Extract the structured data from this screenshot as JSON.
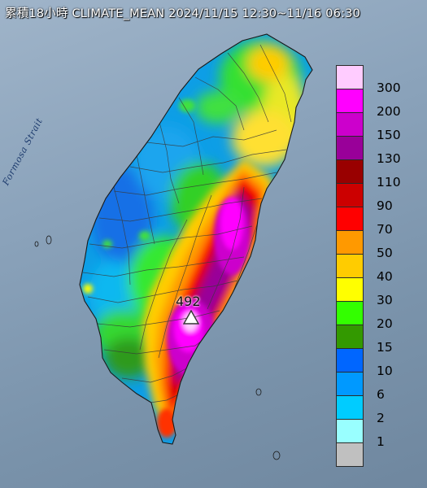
{
  "map": {
    "title": "累積18小時 CLIMATE_MEAN 2024/11/15 12:30~11/16 06:30",
    "sea_label": "Formosa Strait",
    "max_value": "492",
    "land_color": "#0d9ee6"
  },
  "legend": {
    "items": [
      {
        "label": "300",
        "color": "#ffccff"
      },
      {
        "label": "200",
        "color": "#ff00ff"
      },
      {
        "label": "150",
        "color": "#cc00cc"
      },
      {
        "label": "130",
        "color": "#990099"
      },
      {
        "label": "110",
        "color": "#990000"
      },
      {
        "label": "90",
        "color": "#cc0000"
      },
      {
        "label": "70",
        "color": "#ff0000"
      },
      {
        "label": "50",
        "color": "#ff9900"
      },
      {
        "label": "40",
        "color": "#ffcc00"
      },
      {
        "label": "30",
        "color": "#ffff00"
      },
      {
        "label": "20",
        "color": "#33ff00"
      },
      {
        "label": "15",
        "color": "#339900"
      },
      {
        "label": "10",
        "color": "#0066ff"
      },
      {
        "label": "6",
        "color": "#0099ff"
      },
      {
        "label": "2",
        "color": "#00ccff"
      },
      {
        "label": "1",
        "color": "#99ffff"
      },
      {
        "label": "",
        "color": "#c0c0c0"
      }
    ]
  }
}
